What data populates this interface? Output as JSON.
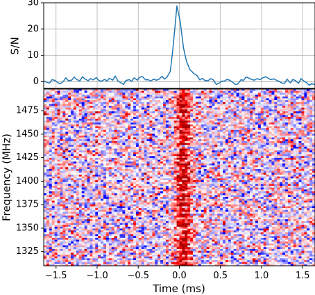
{
  "chart_data": [
    {
      "type": "line",
      "title": "",
      "xlabel": "",
      "ylabel": "S/N",
      "xlim": [
        -1.65,
        1.65
      ],
      "ylim": [
        -2.5,
        30
      ],
      "grid": true,
      "series_color": "#1f77b4",
      "x_ticks": [
        -1.5,
        -1.0,
        -0.5,
        0.0,
        0.5,
        1.0,
        1.5
      ],
      "y_ticks": [
        0,
        10,
        20,
        30
      ],
      "y_tick_labels": [
        "0",
        "10",
        "20",
        "30"
      ],
      "series": [
        {
          "x": [
            -1.65,
            -1.61,
            -1.58,
            -1.55,
            -1.51,
            -1.48,
            -1.45,
            -1.41,
            -1.38,
            -1.35,
            -1.31,
            -1.28,
            -1.25,
            -1.21,
            -1.18,
            -1.15,
            -1.11,
            -1.08,
            -1.05,
            -1.01,
            -0.98,
            -0.95,
            -0.91,
            -0.88,
            -0.85,
            -0.81,
            -0.78,
            -0.75,
            -0.71,
            -0.68,
            -0.65,
            -0.61,
            -0.58,
            -0.55,
            -0.51,
            -0.48,
            -0.45,
            -0.41,
            -0.38,
            -0.35,
            -0.31,
            -0.28,
            -0.25,
            -0.21,
            -0.18,
            -0.15,
            -0.11,
            -0.08,
            -0.05,
            -0.03,
            -0.01,
            0.01,
            0.03,
            0.05,
            0.07,
            0.09,
            0.11,
            0.13,
            0.15,
            0.18,
            0.21,
            0.25,
            0.28,
            0.31,
            0.35,
            0.38,
            0.41,
            0.45,
            0.48,
            0.51,
            0.55,
            0.58,
            0.61,
            0.65,
            0.68,
            0.71,
            0.75,
            0.78,
            0.81,
            0.85,
            0.88,
            0.91,
            0.95,
            0.98,
            1.01,
            1.05,
            1.08,
            1.11,
            1.15,
            1.18,
            1.21,
            1.25,
            1.28,
            1.31,
            1.35,
            1.38,
            1.41,
            1.45,
            1.48,
            1.51,
            1.55,
            1.58,
            1.61,
            1.65
          ],
          "y": [
            0.3,
            -0.2,
            -0.5,
            0.8,
            0.5,
            -0.3,
            -0.8,
            0.2,
            1.5,
            0.4,
            0.6,
            1.8,
            0.9,
            0.3,
            1.9,
            1.1,
            0.4,
            1.2,
            0.7,
            1.6,
            0.5,
            0.2,
            0.9,
            0.3,
            1.3,
            0.6,
            2.2,
            0.4,
            -0.4,
            -1.0,
            0.5,
            0.8,
            0.2,
            1.5,
            0.6,
            1.8,
            2.0,
            0.7,
            0.8,
            0.3,
            1.0,
            0.6,
            0.9,
            2.1,
            1.0,
            1.8,
            4.0,
            12.0,
            22.0,
            28.8,
            26.0,
            23.0,
            18.0,
            13.0,
            10.0,
            7.5,
            6.0,
            4.5,
            4.0,
            3.0,
            2.5,
            0.7,
            1.3,
            0.5,
            0.4,
            1.2,
            0.8,
            -1.0,
            -0.6,
            0.2,
            0.3,
            0.9,
            0.6,
            -0.2,
            -1.0,
            -0.9,
            0.8,
            0.5,
            1.8,
            1.3,
            0.9,
            0.6,
            1.2,
            0.8,
            1.4,
            1.9,
            1.4,
            0.8,
            1.1,
            0.6,
            0.2,
            -0.5,
            -0.6,
            1.0,
            -0.4,
            0.9,
            0.5,
            -0.6,
            1.2,
            0.4,
            -0.4,
            -1.3,
            -0.7,
            -1.1
          ]
        }
      ]
    },
    {
      "type": "heatmap",
      "title": "",
      "xlabel": "Time (ms)",
      "ylabel": "Frequency (MHz)",
      "xlim": [
        -1.65,
        1.65
      ],
      "ylim": [
        1310,
        1498
      ],
      "x_ticks": [
        -1.5,
        -1.0,
        -0.5,
        0.0,
        0.5,
        1.0,
        1.5
      ],
      "x_tick_labels": [
        "−1.5",
        "−1.0",
        "−0.5",
        "0.0",
        "0.5",
        "1.0",
        "1.5"
      ],
      "y_ticks": [
        1325,
        1350,
        1375,
        1400,
        1425,
        1450,
        1475
      ],
      "y_tick_labels": [
        "1325",
        "1350",
        "1375",
        "1400",
        "1425",
        "1450",
        "1475"
      ],
      "colormap": "seismic",
      "colors": {
        "low": "#0000ff",
        "mid": "#ffffff",
        "high": "#ff0000",
        "burst": "#aa0000"
      },
      "burst_center_ms": 0.05,
      "burst_width_ms": 0.14,
      "n_time_bins": 100,
      "n_freq_channels": 95,
      "grid": false
    }
  ]
}
